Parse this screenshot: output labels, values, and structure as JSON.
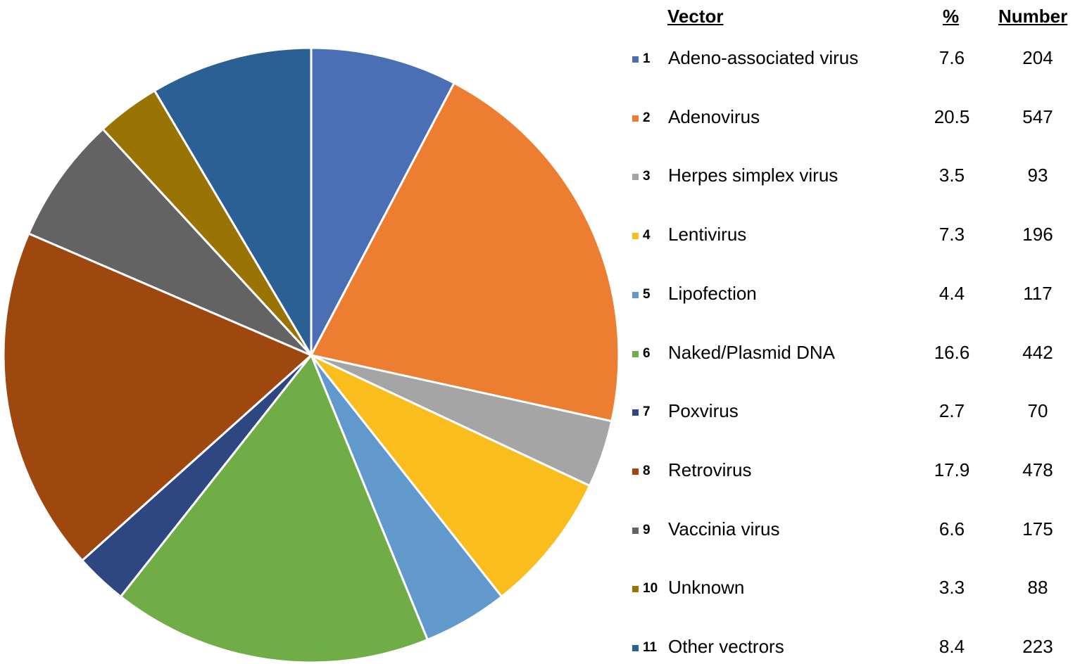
{
  "chart_data": {
    "type": "pie",
    "title": "",
    "headers": {
      "vector": "Vector",
      "percent": "%",
      "number": "Number"
    },
    "slices": [
      {
        "index": "1",
        "label": "Adeno-associated virus",
        "percent": "7.6",
        "number": "204",
        "value": 7.6,
        "color": "#4A6FB5"
      },
      {
        "index": "2",
        "label": "Adenovirus",
        "percent": "20.5",
        "number": "547",
        "value": 20.5,
        "color": "#ED7D31"
      },
      {
        "index": "3",
        "label": "Herpes simplex virus",
        "percent": "3.5",
        "number": "93",
        "value": 3.5,
        "color": "#A5A5A5"
      },
      {
        "index": "4",
        "label": "Lentivirus",
        "percent": "7.3",
        "number": "196",
        "value": 7.3,
        "color": "#F9BE1E"
      },
      {
        "index": "5",
        "label": "Lipofection",
        "percent": "4.4",
        "number": "117",
        "value": 4.4,
        "color": "#6299CD"
      },
      {
        "index": "6",
        "label": "Naked/Plasmid DNA",
        "percent": "16.6",
        "number": "442",
        "value": 16.6,
        "color": "#70AD47"
      },
      {
        "index": "7",
        "label": "Poxvirus",
        "percent": "2.7",
        "number": "70",
        "value": 2.7,
        "color": "#2E4780"
      },
      {
        "index": "8",
        "label": "Retrovirus",
        "percent": "17.9",
        "number": "478",
        "value": 17.9,
        "color": "#9E4810"
      },
      {
        "index": "9",
        "label": "Vaccinia virus",
        "percent": "6.6",
        "number": "175",
        "value": 6.6,
        "color": "#636363"
      },
      {
        "index": "10",
        "label": "Unknown",
        "percent": "3.3",
        "number": "88",
        "value": 3.3,
        "color": "#997405"
      },
      {
        "index": "11",
        "label": "Other vectrors",
        "percent": "8.4",
        "number": "223",
        "value": 8.4,
        "color": "#2A6093"
      }
    ],
    "start_angle": "12 o'clock",
    "direction": "clockwise",
    "legend_placement": "right"
  }
}
